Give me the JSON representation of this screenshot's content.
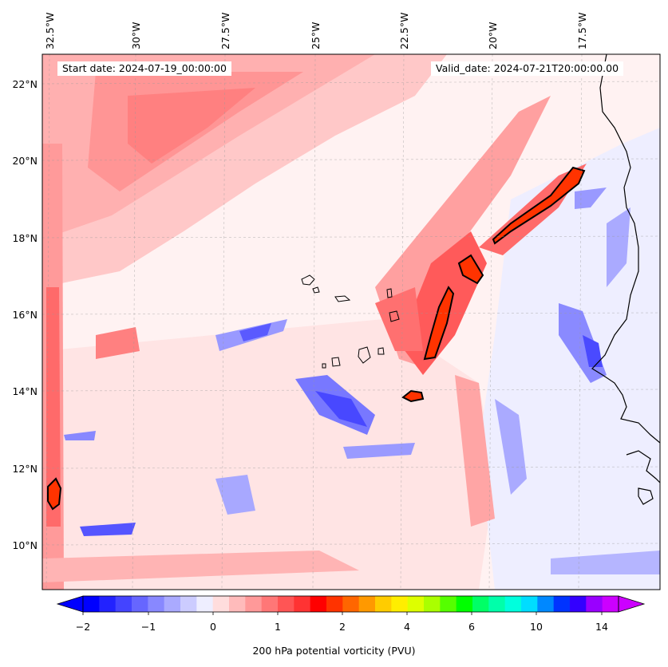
{
  "map": {
    "header": {
      "start_date": "Start date: 2024-07-19_00:00:00",
      "valid_date": "Valid_date: 2024-07-21T20:00:00.00"
    },
    "longitude_ticks": [
      "32.5°W",
      "30°W",
      "27.5°W",
      "25°W",
      "22.5°W",
      "20°W",
      "17.5°W"
    ],
    "latitude_ticks": [
      "22°N",
      "20°N",
      "18°N",
      "16°N",
      "14°N",
      "12°N",
      "10°N"
    ],
    "colorbar": {
      "label": "200 hPa potential vorticity (PVU)",
      "tick_labels": [
        "−2",
        "−1",
        "0",
        "1",
        "2",
        "4",
        "6",
        "10",
        "14"
      ],
      "colors": [
        "#0000ff",
        "#2222ff",
        "#4444ff",
        "#6666ff",
        "#8888ff",
        "#aaaaff",
        "#ccccff",
        "#eeeeff",
        "#ffdddd",
        "#ffbbbb",
        "#ff9999",
        "#ff7777",
        "#ff5555",
        "#ff3333",
        "#ff0000",
        "#ff3300",
        "#ff6600",
        "#ff9900",
        "#ffcc00",
        "#ffee00",
        "#ddff00",
        "#aaff00",
        "#55ff00",
        "#00ff00",
        "#00ff66",
        "#00ffaa",
        "#00ffdd",
        "#00ddff",
        "#0088ff",
        "#0033ff",
        "#3300ff",
        "#9900ff",
        "#cc00ff"
      ],
      "extend_min_color": "#0000ff",
      "extend_max_color": "#cc00ff"
    },
    "colors": {
      "background": "#ffecec",
      "contour": "#000000",
      "coastline": "#000000"
    }
  }
}
